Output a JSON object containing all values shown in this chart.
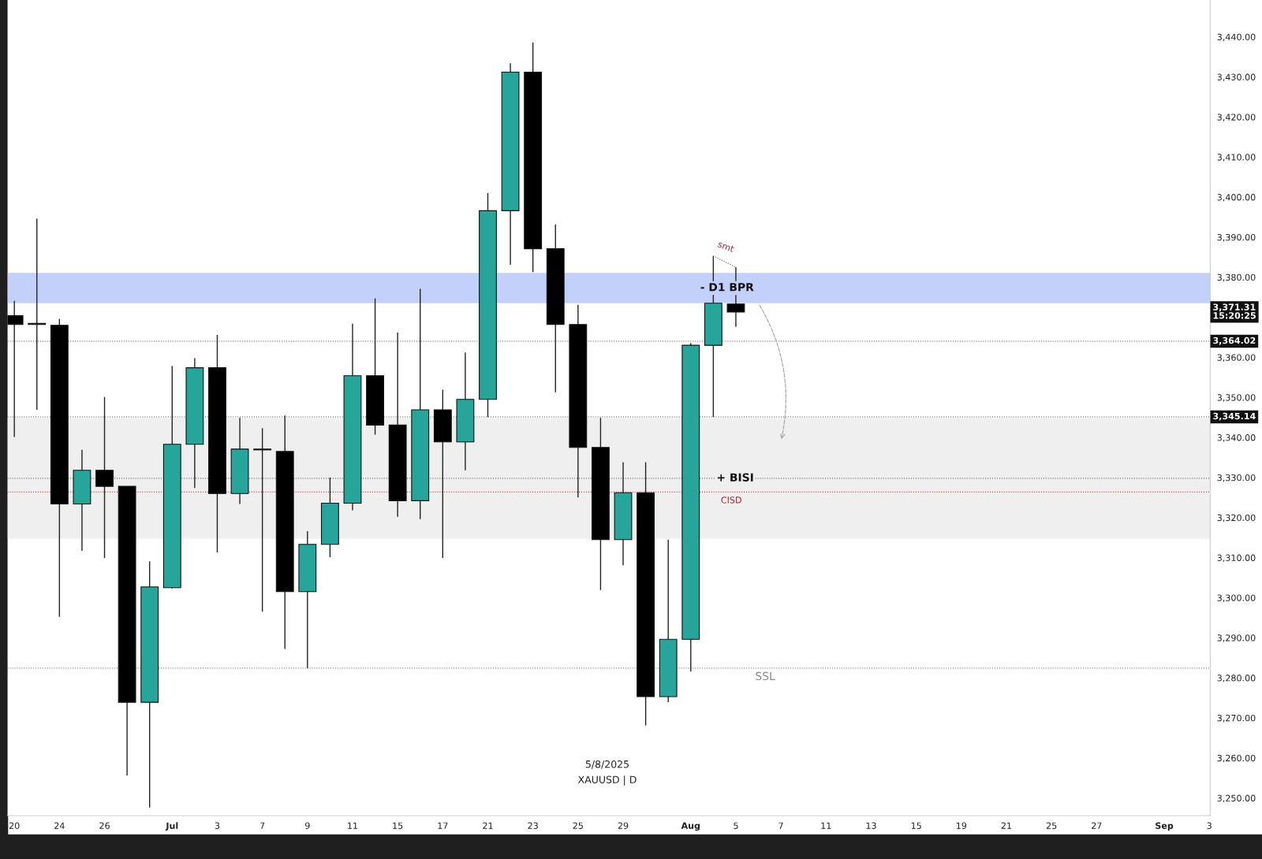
{
  "chart_data": {
    "type": "candlestick",
    "categories": [
      "20",
      null,
      "24",
      null,
      "26",
      null,
      null,
      "Jul",
      null,
      "3",
      null,
      "7",
      null,
      "9",
      null,
      "11",
      null,
      "15",
      null,
      "17",
      null,
      "21",
      null,
      "23",
      null,
      "25",
      null,
      "29",
      null,
      null,
      "Aug",
      null,
      "5",
      null,
      "7",
      null,
      "11",
      null,
      "13",
      null,
      "15",
      null,
      "19",
      null,
      "21",
      null,
      "25",
      null,
      "27",
      null,
      null,
      "Sep",
      null,
      "3"
    ],
    "ohlc": [
      [
        3370.4,
        3374.1,
        3340.1,
        3368.2
      ],
      [
        3368.5,
        3394.6,
        3346.9,
        3368.2
      ],
      [
        3368.0,
        3369.6,
        3295.2,
        3323.4
      ],
      [
        3323.4,
        3336.9,
        3311.7,
        3331.8
      ],
      [
        3331.8,
        3350.1,
        3309.9,
        3327.8
      ],
      [
        3327.8,
        3327.8,
        3255.6,
        3273.9
      ],
      [
        3273.9,
        3309.1,
        3247.6,
        3302.7
      ],
      [
        3302.5,
        3357.8,
        3302.3,
        3338.3
      ],
      [
        3338.3,
        3359.8,
        3327.4,
        3357.4
      ],
      [
        3357.4,
        3365.6,
        3311.3,
        3326.0
      ],
      [
        3326.0,
        3344.9,
        3323.4,
        3337.1
      ],
      [
        3336.9,
        3342.3,
        3296.5,
        3337.1
      ],
      [
        3336.5,
        3345.5,
        3287.2,
        3301.5
      ],
      [
        3301.5,
        3316.6,
        3282.4,
        3313.3
      ],
      [
        3313.3,
        3330.0,
        3310.1,
        3323.6
      ],
      [
        3323.6,
        3368.4,
        3321.8,
        3355.4
      ],
      [
        3355.4,
        3374.7,
        3340.7,
        3343.1
      ],
      [
        3343.1,
        3366.2,
        3320.2,
        3324.2
      ],
      [
        3324.2,
        3377.1,
        3319.6,
        3346.9
      ],
      [
        3346.9,
        3351.9,
        3309.9,
        3338.9
      ],
      [
        3338.9,
        3361.2,
        3331.8,
        3349.5
      ],
      [
        3349.5,
        3401.0,
        3345.1,
        3396.6
      ],
      [
        3396.6,
        3433.4,
        3383.1,
        3431.2
      ],
      [
        3431.2,
        3438.6,
        3381.3,
        3387.1
      ],
      [
        3387.1,
        3393.2,
        3351.3,
        3368.2
      ],
      [
        3368.2,
        3373.1,
        3325.0,
        3337.5
      ],
      [
        3337.5,
        3344.9,
        3301.9,
        3314.5
      ],
      [
        3314.5,
        3333.8,
        3308.1,
        3326.2
      ],
      [
        3326.2,
        3333.8,
        3268.1,
        3275.3
      ],
      [
        3275.3,
        3314.5,
        3273.9,
        3289.6
      ],
      [
        3289.6,
        3363.6,
        3281.6,
        3363.0
      ],
      [
        3363.0,
        3385.3,
        3345.1,
        3373.5
      ],
      [
        3373.3,
        3382.5,
        3367.6,
        3371.31
      ],
      null,
      null,
      null,
      null,
      null,
      null,
      null,
      null,
      null,
      null,
      null,
      null,
      null,
      null,
      null,
      null,
      null,
      null,
      null,
      null,
      null
    ],
    "colors": [
      "#000000",
      "#000000",
      "#000000",
      "#26a69a",
      "#000000",
      "#000000",
      "#26a69a",
      "#26a69a",
      "#26a69a",
      "#000000",
      "#26a69a",
      "#26a69a",
      "#000000",
      "#26a69a",
      "#26a69a",
      "#26a69a",
      "#000000",
      "#000000",
      "#26a69a",
      "#000000",
      "#26a69a",
      "#26a69a",
      "#26a69a",
      "#000000",
      "#000000",
      "#000000",
      "#000000",
      "#26a69a",
      "#000000",
      "#26a69a",
      "#26a69a",
      "#26a69a",
      "#000000",
      null,
      null,
      null,
      null,
      null,
      null,
      null,
      null,
      null,
      null,
      null,
      null,
      null,
      null,
      null,
      null,
      null,
      null,
      null,
      null,
      null
    ],
    "ylim": [
      3245.6,
      3449.2
    ],
    "yticks": [
      {
        "value": 3250,
        "label": "3,250.00"
      },
      {
        "value": 3260,
        "label": "3,260.00"
      },
      {
        "value": 3270,
        "label": "3,270.00"
      },
      {
        "value": 3280,
        "label": "3,280.00"
      },
      {
        "value": 3290,
        "label": "3,290.00"
      },
      {
        "value": 3300,
        "label": "3,300.00"
      },
      {
        "value": 3310,
        "label": "3,310.00"
      },
      {
        "value": 3320,
        "label": "3,320.00"
      },
      {
        "value": 3330,
        "label": "3,330.00"
      },
      {
        "value": 3340,
        "label": "3,340.00"
      },
      {
        "value": 3350,
        "label": "3,350.00"
      },
      {
        "value": 3360,
        "label": "3,360.00"
      },
      {
        "value": 3380,
        "label": "3,380.00"
      },
      {
        "value": 3390,
        "label": "3,390.00"
      },
      {
        "value": 3400,
        "label": "3,400.00"
      },
      {
        "value": 3410,
        "label": "3,410.00"
      },
      {
        "value": 3420,
        "label": "3,420.00"
      },
      {
        "value": 3430,
        "label": "3,430.00"
      },
      {
        "value": 3440,
        "label": "3,440.00"
      }
    ],
    "grid": false,
    "ref_lines": [
      {
        "axis": "y",
        "value": 3364.02,
        "label": "3,364.02",
        "color": "#555555",
        "line_style": "dotted"
      },
      {
        "axis": "y",
        "value": 3345.14,
        "label": "3,345.14",
        "color": "#555555",
        "line_style": "dotted"
      },
      {
        "axis": "y",
        "value": 3329.8,
        "label": "+ BISI",
        "color": "#555555",
        "line_style": "dotted"
      },
      {
        "axis": "y",
        "value": 3326.4,
        "label": "CISD",
        "color": "#b22234",
        "line_style": "dotted"
      },
      {
        "axis": "y",
        "value": 3282.4,
        "label": "SSL",
        "color": "#888888",
        "line_style": "dotted"
      }
    ],
    "bands": [
      {
        "axis": "y",
        "from": 3373.5,
        "to": 3381.1,
        "label": "- D1 BPR",
        "color": "#c3d0fa"
      },
      {
        "axis": "y",
        "from": 3314.7,
        "to": 3344.9,
        "color": "#efefef"
      }
    ],
    "annotations": [
      "smt",
      "5/8/2025",
      "XAUUSD | D",
      "3,371.31\n15:20:25"
    ]
  }
}
